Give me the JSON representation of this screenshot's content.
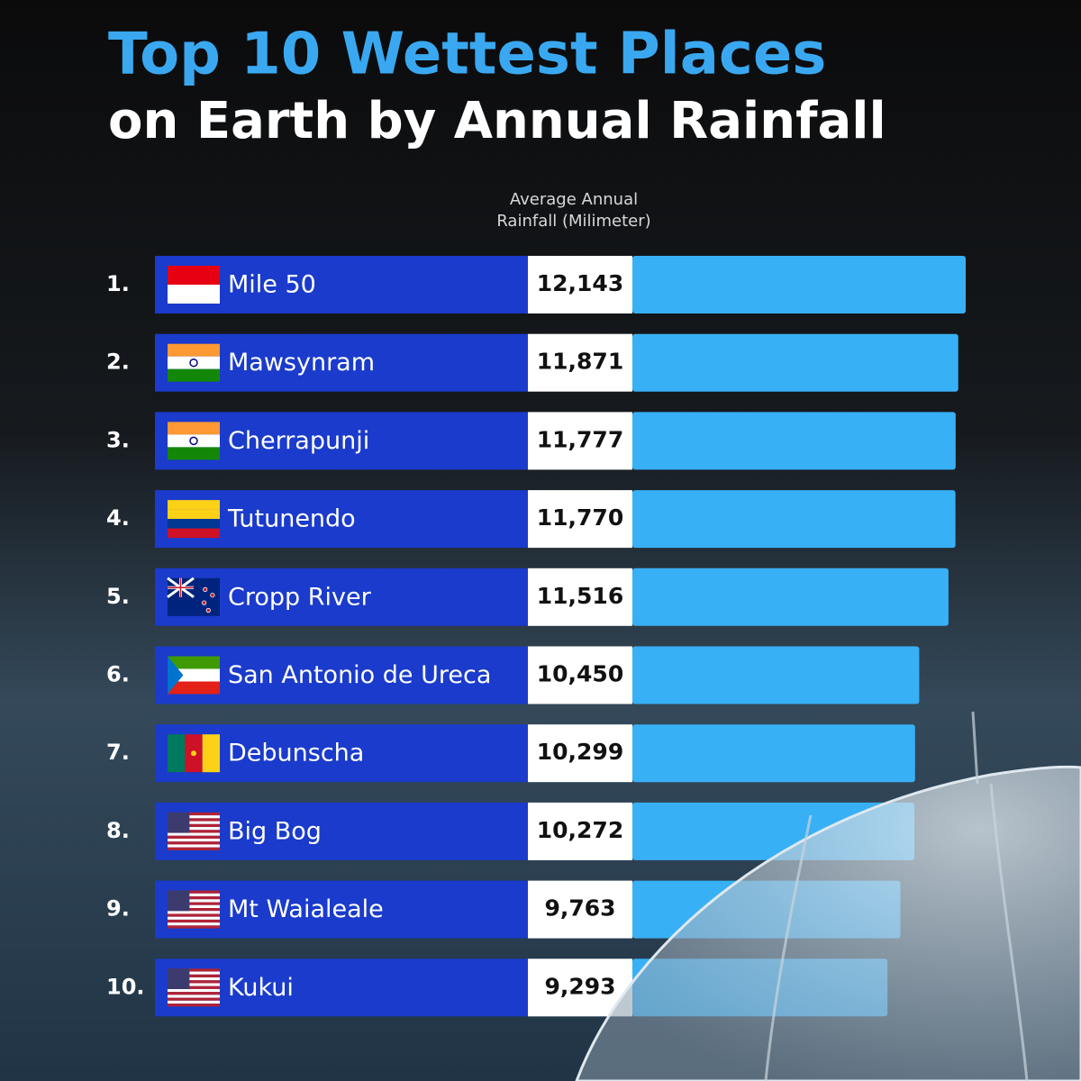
{
  "chart_data": {
    "type": "bar",
    "title": "Top 10 Wettest Places",
    "subtitle": "on Earth by Annual Rainfall",
    "x_label": [
      "Average Annual",
      "Rainfall (Milimeter)"
    ],
    "ranks": [
      "1.",
      "2.",
      "3.",
      "4.",
      "5.",
      "6.",
      "7.",
      "8.",
      "9.",
      "10."
    ],
    "categories": [
      "Mile 50",
      "Mawsynram",
      "Cherrapunji",
      "Tutunendo",
      "Cropp River",
      "San Antonio de Ureca",
      "Debunscha",
      "Big Bog",
      "Mt Waialeale",
      "Kukui"
    ],
    "values": [
      12143,
      11871,
      11777,
      11770,
      11516,
      10450,
      10299,
      10272,
      9763,
      9293
    ],
    "value_labels": [
      "12,143",
      "11,871",
      "11,777",
      "11,770",
      "11,516",
      "10,450",
      "10,299",
      "10,272",
      "9,763",
      "9,293"
    ],
    "color": "#38b0f6"
  }
}
